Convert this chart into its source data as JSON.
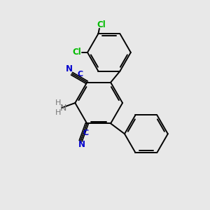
{
  "background_color": "#e8e8e8",
  "bond_color": "#000000",
  "cn_color": "#0000cc",
  "cl_color": "#00bb00",
  "nh2_color": "#777777",
  "n_color": "#0000cc",
  "c_color": "#0000cc",
  "figsize": [
    3.0,
    3.0
  ],
  "dpi": 100,
  "xlim": [
    0,
    10
  ],
  "ylim": [
    0,
    10
  ]
}
